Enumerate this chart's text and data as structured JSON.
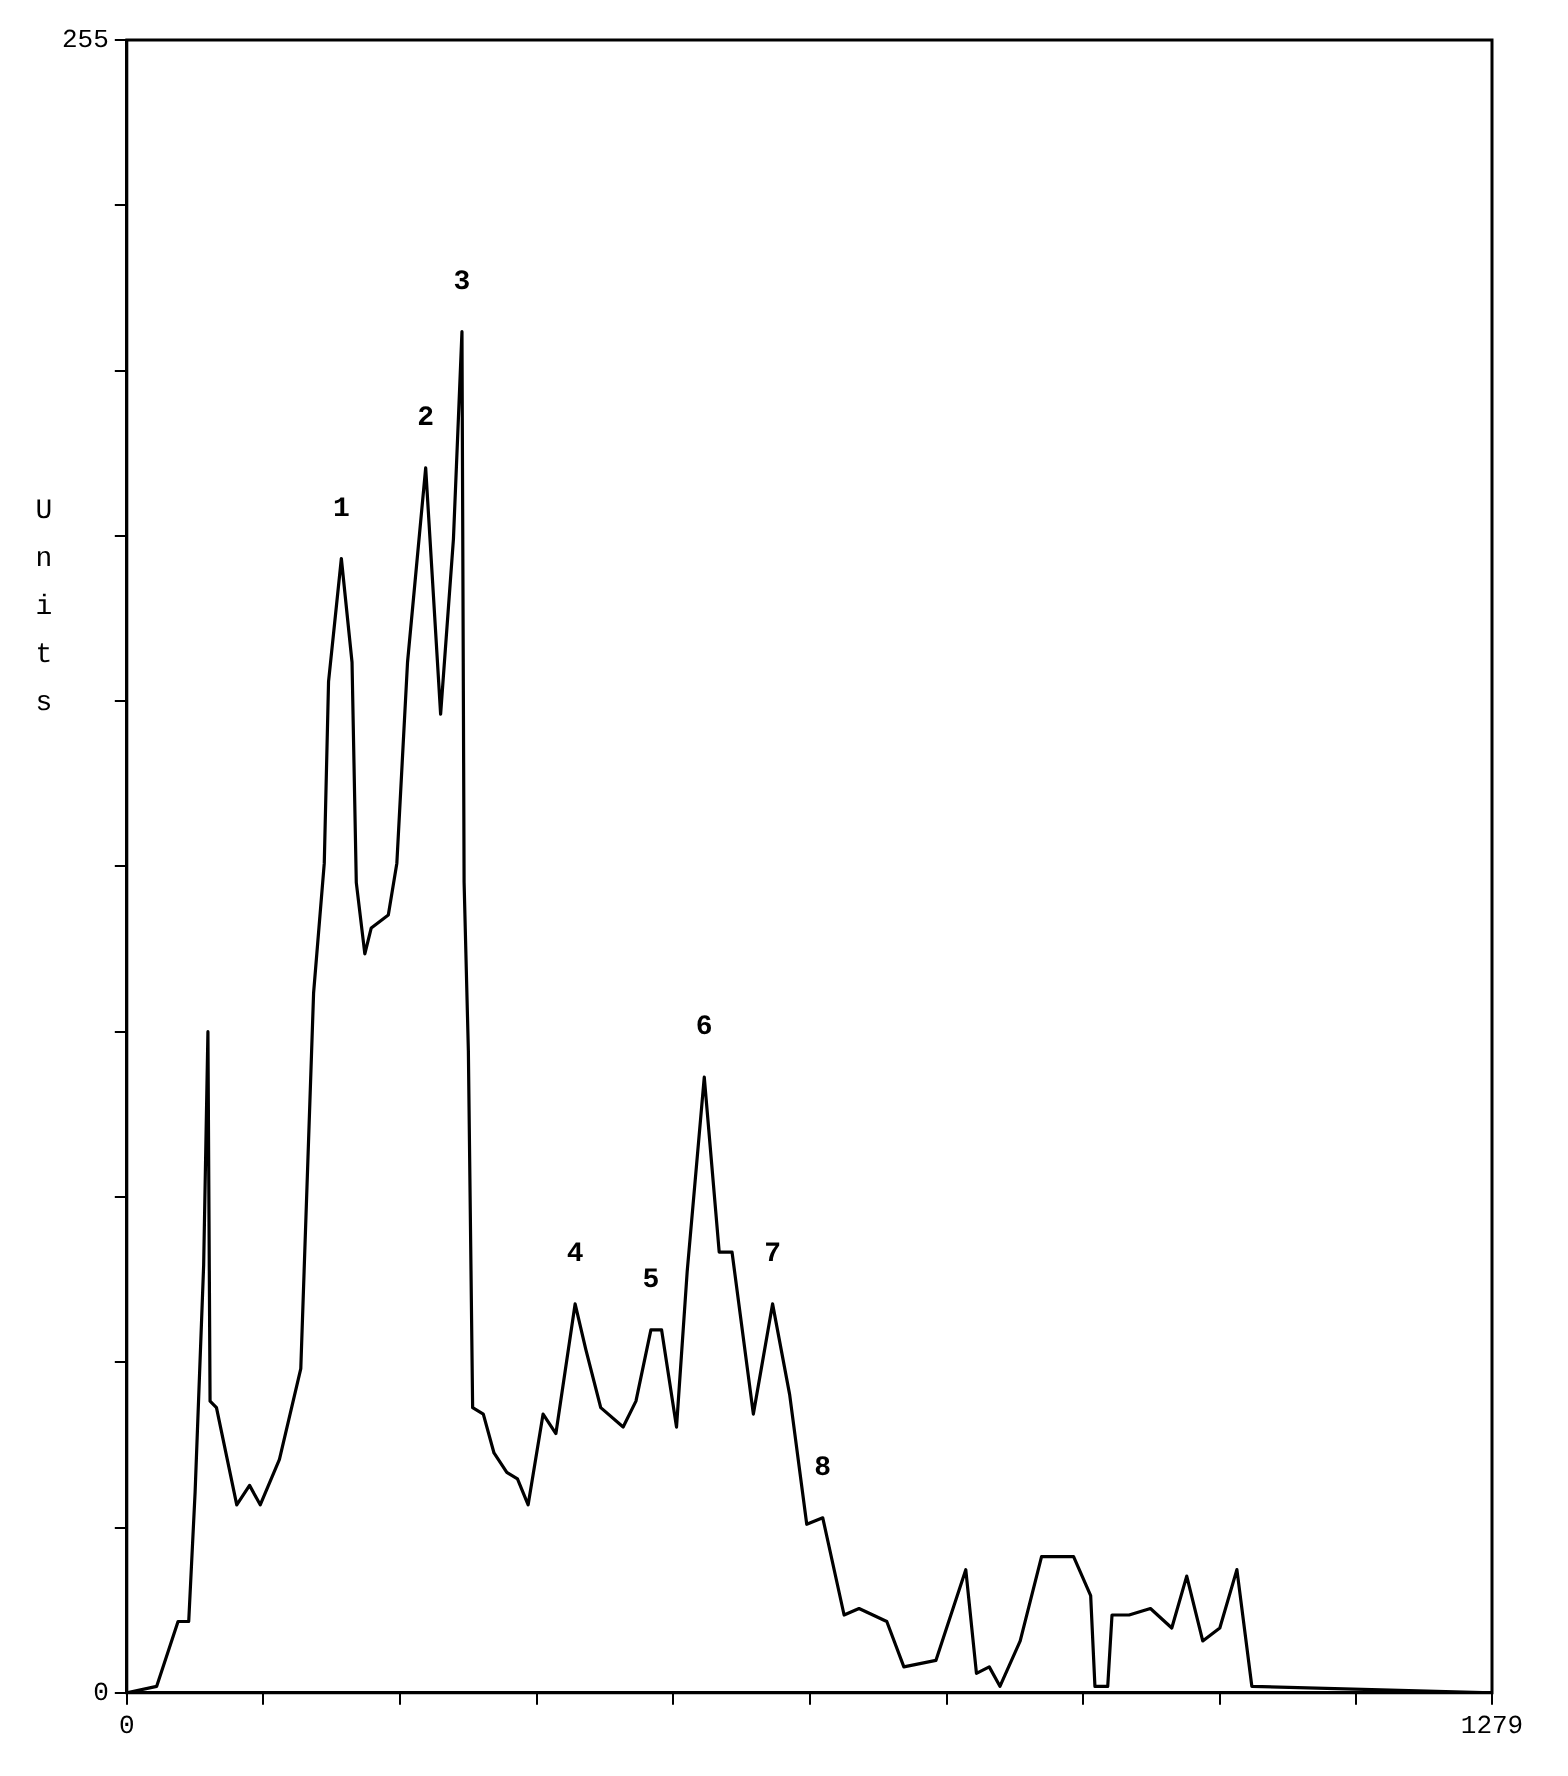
{
  "chart_data": {
    "type": "line",
    "ylabel": "Units",
    "xlim": [
      0,
      1279
    ],
    "ylim": [
      0,
      255
    ],
    "xticks": [
      0,
      {
        "value": 128,
        "label": null
      },
      {
        "value": 256,
        "label": null
      },
      {
        "value": 384,
        "label": null
      },
      {
        "value": 512,
        "label": null
      },
      {
        "value": 640,
        "label": null
      },
      {
        "value": 768,
        "label": null
      },
      {
        "value": 896,
        "label": null
      },
      {
        "value": 1024,
        "label": null
      },
      {
        "value": 1152,
        "label": null
      },
      1279
    ],
    "yticks": [
      0,
      {
        "value": 25.5,
        "label": null
      },
      {
        "value": 51,
        "label": null
      },
      {
        "value": 76.5,
        "label": null
      },
      {
        "value": 102,
        "label": null
      },
      {
        "value": 127.5,
        "label": null
      },
      {
        "value": 153,
        "label": null
      },
      {
        "value": 178.5,
        "label": null
      },
      {
        "value": 204,
        "label": null
      },
      {
        "value": 229.5,
        "label": null
      },
      255
    ],
    "legend": false,
    "marker": "none",
    "line_style": "solid",
    "series": [
      {
        "color": "#000000",
        "x": [
          0,
          28,
          48,
          58,
          64,
          72,
          76,
          78,
          84,
          103,
          115,
          125,
          143,
          163,
          175,
          185,
          189,
          201,
          211,
          215,
          223,
          229,
          245,
          253,
          263,
          280,
          294,
          306,
          314,
          316,
          320,
          324,
          334,
          344,
          356,
          366,
          376,
          390,
          402,
          420,
          430,
          444,
          465,
          477,
          491,
          501,
          515,
          525,
          541,
          555,
          567,
          587,
          605,
          621,
          637,
          652,
          672,
          686,
          712,
          728,
          758,
          786,
          796,
          808,
          818,
          837,
          857,
          887,
          903,
          907,
          919,
          923,
          939,
          959,
          979,
          993,
          1008,
          1024,
          1040,
          1054,
          1279
        ],
        "values": [
          0,
          1,
          11,
          11,
          31,
          66,
          102,
          45,
          44,
          29,
          32,
          29,
          36,
          50,
          108,
          128,
          156,
          175,
          159,
          125,
          114,
          118,
          120,
          128,
          159,
          189,
          151,
          178,
          210,
          125,
          99,
          44,
          43,
          37,
          34,
          33,
          29,
          43,
          40,
          60,
          53,
          44,
          41,
          45,
          56,
          56,
          41,
          65,
          95,
          68,
          68,
          43,
          60,
          46,
          26,
          27,
          12,
          13,
          11,
          4,
          5,
          19,
          3,
          4,
          1,
          8,
          21,
          21,
          15,
          1,
          1,
          12,
          12,
          13,
          10,
          18,
          8,
          10,
          19,
          1,
          0
        ]
      }
    ],
    "annotations": [
      {
        "text": "1",
        "x": 201,
        "y": 175
      },
      {
        "text": "2",
        "x": 280,
        "y": 189
      },
      {
        "text": "3",
        "x": 314,
        "y": 210
      },
      {
        "text": "4",
        "x": 420,
        "y": 60
      },
      {
        "text": "5",
        "x": 491,
        "y": 56
      },
      {
        "text": "6",
        "x": 541,
        "y": 95
      },
      {
        "text": "7",
        "x": 605,
        "y": 60
      },
      {
        "text": "8",
        "x": 652,
        "y": 27
      }
    ]
  }
}
